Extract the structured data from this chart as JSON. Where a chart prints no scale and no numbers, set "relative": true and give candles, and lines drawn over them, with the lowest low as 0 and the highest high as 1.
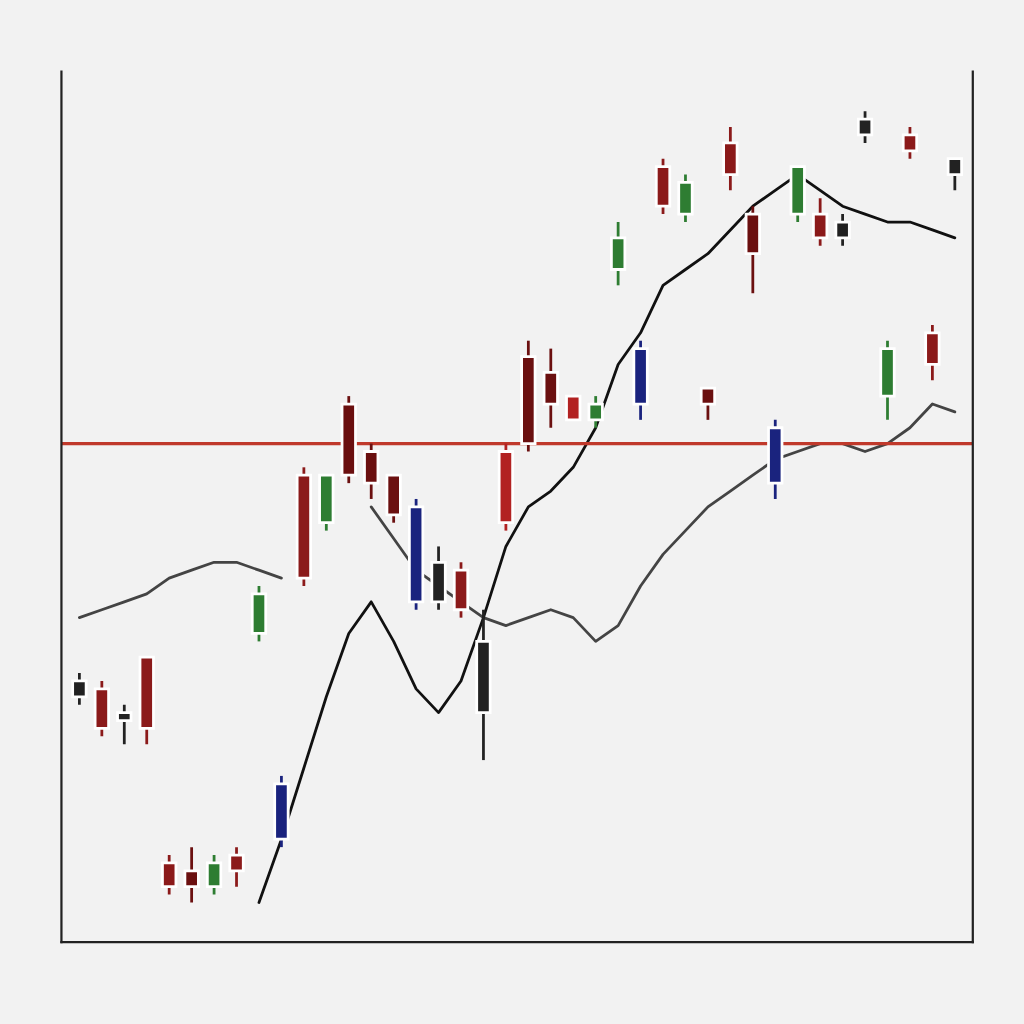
{
  "chart_data": {
    "type": "candlestick",
    "relative": true,
    "categories": [
      null,
      null,
      null,
      null,
      null,
      null,
      null,
      null,
      null,
      null,
      null,
      null,
      null,
      null,
      null,
      null,
      null,
      null,
      null,
      null,
      null,
      null,
      null,
      null,
      null,
      null,
      null,
      null,
      null,
      null,
      null,
      null,
      null,
      null,
      null,
      null,
      null,
      null,
      null,
      null
    ],
    "ohlc": [
      [
        0.28,
        0.29,
        0.25,
        0.26
      ],
      [
        0.27,
        0.28,
        0.21,
        0.22
      ],
      [
        0.24,
        0.25,
        0.2,
        0.23
      ],
      [
        0.31,
        0.31,
        0.2,
        0.22
      ],
      [
        0.05,
        0.06,
        0.01,
        0.02
      ],
      [
        0.04,
        0.07,
        0.0,
        0.02
      ],
      [
        0.02,
        0.06,
        0.01,
        0.05
      ],
      [
        0.06,
        0.07,
        0.02,
        0.04
      ],
      [
        0.34,
        0.4,
        0.33,
        0.39
      ],
      [
        0.15,
        0.16,
        0.07,
        0.08
      ],
      [
        0.54,
        0.55,
        0.4,
        0.41
      ],
      [
        0.48,
        0.54,
        0.47,
        0.54
      ],
      [
        0.63,
        0.64,
        0.53,
        0.54
      ],
      [
        0.57,
        0.58,
        0.51,
        0.53
      ],
      [
        0.54,
        0.54,
        0.48,
        0.49
      ],
      [
        0.5,
        0.51,
        0.37,
        0.38
      ],
      [
        0.43,
        0.45,
        0.37,
        0.38
      ],
      [
        0.42,
        0.43,
        0.36,
        0.37
      ],
      [
        0.33,
        0.37,
        0.18,
        0.24
      ],
      [
        0.57,
        0.58,
        0.47,
        0.48
      ],
      [
        0.69,
        0.71,
        0.57,
        0.58
      ],
      [
        0.67,
        0.7,
        0.6,
        0.63
      ],
      [
        0.64,
        0.64,
        0.61,
        0.61
      ],
      [
        0.61,
        0.64,
        0.6,
        0.63
      ],
      [
        0.8,
        0.86,
        0.78,
        0.84
      ],
      [
        0.7,
        0.71,
        0.61,
        0.63
      ],
      [
        0.93,
        0.94,
        0.87,
        0.88
      ],
      [
        0.87,
        0.92,
        0.86,
        0.91
      ],
      [
        0.65,
        0.65,
        0.61,
        0.63
      ],
      [
        0.96,
        0.98,
        0.9,
        0.92
      ],
      [
        0.87,
        0.88,
        0.77,
        0.82
      ],
      [
        0.6,
        0.61,
        0.51,
        0.53
      ],
      [
        0.87,
        0.93,
        0.86,
        0.93
      ],
      [
        0.87,
        0.89,
        0.83,
        0.84
      ],
      [
        0.86,
        0.87,
        0.83,
        0.84
      ],
      [
        0.99,
        1.0,
        0.96,
        0.97
      ],
      [
        0.64,
        0.71,
        0.61,
        0.7
      ],
      [
        0.97,
        0.98,
        0.94,
        0.95
      ],
      [
        0.72,
        0.73,
        0.66,
        0.68
      ],
      [
        0.94,
        0.94,
        0.9,
        0.92
      ]
    ],
    "colors": [
      "#222222",
      "#8b1a1a",
      "#222222",
      "#8b1a1a",
      "#8b1a1a",
      "#6b1010",
      "#2e7d32",
      "#8b1a1a",
      "#2e7d32",
      "#1a237e",
      "#8b1a1a",
      "#2e7d32",
      "#6b1010",
      "#6b1010",
      "#6b1010",
      "#1a237e",
      "#222222",
      "#8b1a1a",
      "#222222",
      "#b22222",
      "#6b1010",
      "#6b1010",
      "#b22222",
      "#2e7d32",
      "#2e7d32",
      "#1a237e",
      "#8b1a1a",
      "#2e7d32",
      "#6b1010",
      "#8b1a1a",
      "#6b1010",
      "#1a237e",
      "#2e7d32",
      "#8b1a1a",
      "#222222",
      "#222222",
      "#2e7d32",
      "#8b1a1a",
      "#8b1a1a",
      "#222222"
    ],
    "series": [
      {
        "type": "line",
        "color": "#444444",
        "values": [
          0.36,
          0.37,
          0.38,
          0.39,
          0.41,
          0.42,
          0.43,
          0.43,
          0.42,
          0.41,
          null,
          null,
          null,
          0.5,
          0.46,
          0.42,
          0.4,
          0.38,
          0.36,
          0.35,
          0.36,
          0.37,
          0.36,
          0.33,
          0.35,
          0.4,
          0.44,
          0.47,
          0.5,
          0.52,
          0.54,
          0.56,
          0.57,
          0.58,
          0.58,
          0.57,
          0.58,
          0.6,
          0.63,
          0.62
        ]
      },
      {
        "type": "line",
        "color": "#111111",
        "values": [
          null,
          null,
          null,
          null,
          null,
          null,
          null,
          null,
          0.0,
          0.08,
          0.17,
          0.26,
          0.34,
          0.38,
          0.33,
          0.27,
          0.24,
          0.28,
          0.36,
          0.45,
          0.5,
          0.52,
          0.55,
          0.6,
          0.68,
          0.72,
          0.78,
          0.8,
          0.82,
          0.85,
          0.88,
          0.9,
          0.92,
          0.9,
          0.88,
          0.87,
          0.86,
          0.86,
          0.85,
          0.84
        ]
      }
    ],
    "ref_lines": [
      {
        "axis": "y",
        "value": 0.58,
        "color": "#c0392b"
      }
    ]
  }
}
